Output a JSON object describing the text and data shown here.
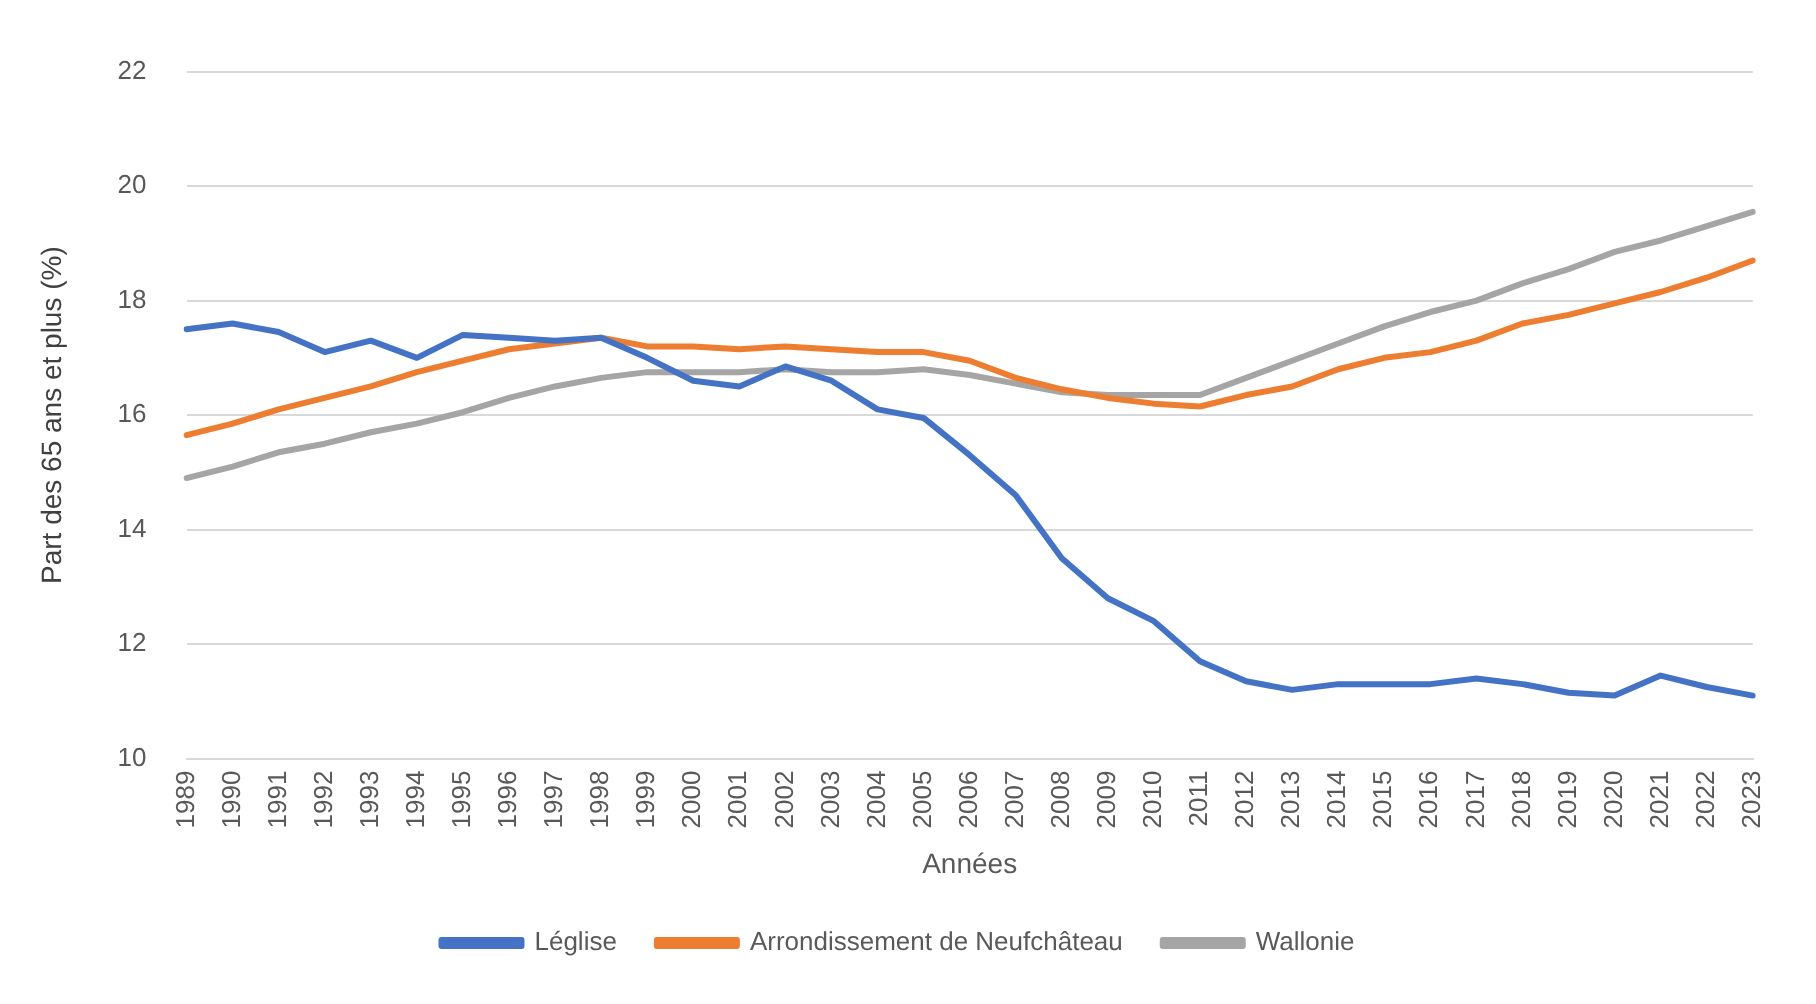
{
  "chart_data": {
    "type": "line",
    "xlabel": "Années",
    "ylabel": "Part des 65 ans et plus (%)",
    "categories": [
      "1989",
      "1990",
      "1991",
      "1992",
      "1993",
      "1994",
      "1995",
      "1996",
      "1997",
      "1998",
      "1999",
      "2000",
      "2001",
      "2002",
      "2003",
      "2004",
      "2005",
      "2006",
      "2007",
      "2008",
      "2009",
      "2010",
      "2011",
      "2012",
      "2013",
      "2014",
      "2015",
      "2016",
      "2017",
      "2018",
      "2019",
      "2020",
      "2021",
      "2022",
      "2023"
    ],
    "series": [
      {
        "name": "Léglise",
        "color": "#4472c4",
        "values": [
          17.5,
          17.6,
          17.45,
          17.1,
          17.3,
          17.0,
          17.4,
          17.35,
          17.3,
          17.35,
          17.0,
          16.6,
          16.5,
          16.85,
          16.6,
          16.1,
          15.95,
          15.3,
          14.6,
          13.5,
          12.8,
          12.4,
          11.7,
          11.35,
          11.2,
          11.3,
          11.3,
          11.3,
          11.4,
          11.3,
          11.15,
          11.1,
          11.45,
          11.25,
          11.1
        ]
      },
      {
        "name": "Arrondissement de Neufchâteau",
        "color": "#ed7d31",
        "values": [
          15.65,
          15.85,
          16.1,
          16.3,
          16.5,
          16.75,
          16.95,
          17.15,
          17.25,
          17.35,
          17.2,
          17.2,
          17.15,
          17.2,
          17.15,
          17.1,
          17.1,
          16.95,
          16.65,
          16.45,
          16.3,
          16.2,
          16.15,
          16.35,
          16.5,
          16.8,
          17.0,
          17.1,
          17.3,
          17.6,
          17.75,
          17.95,
          18.15,
          18.4,
          18.7
        ]
      },
      {
        "name": "Wallonie",
        "color": "#a5a5a5",
        "values": [
          14.9,
          15.1,
          15.35,
          15.5,
          15.7,
          15.85,
          16.05,
          16.3,
          16.5,
          16.65,
          16.75,
          16.75,
          16.75,
          16.8,
          16.75,
          16.75,
          16.8,
          16.7,
          16.55,
          16.4,
          16.35,
          16.35,
          16.35,
          16.65,
          16.95,
          17.25,
          17.55,
          17.8,
          18.0,
          18.3,
          18.55,
          18.85,
          19.05,
          19.3,
          19.55
        ]
      }
    ],
    "ylim": [
      10,
      22
    ],
    "yticks": [
      10,
      12,
      14,
      16,
      18,
      20,
      22
    ],
    "grid": "y",
    "legend": "bottom",
    "marker": "none",
    "line_style": "solid"
  }
}
